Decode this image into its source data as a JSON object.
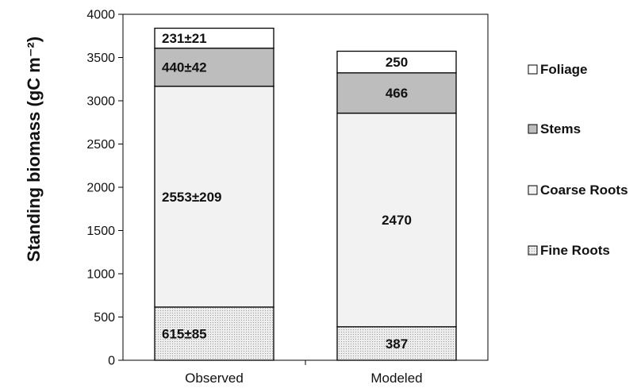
{
  "chart_data": {
    "type": "bar",
    "stacked": true,
    "categories": [
      "Observed",
      "Modeled"
    ],
    "ylabel": "Standing biomass (gC m⁻²)",
    "ylim": [
      0,
      4000
    ],
    "yticks": [
      0,
      500,
      1000,
      1500,
      2000,
      2500,
      3000,
      3500,
      4000
    ],
    "ytick_labels": [
      "0",
      "500",
      "1000",
      "1500",
      "2000",
      "2500",
      "3000",
      "3500",
      "4000"
    ],
    "grid": false,
    "legend": "right",
    "series": [
      {
        "name": "Fine Roots",
        "values": [
          615,
          387
        ],
        "labels": [
          "615±85",
          "387"
        ],
        "color": "#ececec",
        "pattern": "dots"
      },
      {
        "name": "Coarse Roots",
        "values": [
          2553,
          2470
        ],
        "labels": [
          "2553±209",
          "2470"
        ],
        "color": "#f2f2f2",
        "pattern": "none"
      },
      {
        "name": "Stems",
        "values": [
          440,
          466
        ],
        "labels": [
          "440±42",
          "466"
        ],
        "color": "#bdbdbd",
        "pattern": "none"
      },
      {
        "name": "Foliage",
        "values": [
          231,
          250
        ],
        "labels": [
          "231±21",
          "250"
        ],
        "color": "#ffffff",
        "pattern": "none"
      }
    ],
    "legend_order": [
      "Foliage",
      "Stems",
      "Coarse Roots",
      "Fine Roots"
    ]
  }
}
